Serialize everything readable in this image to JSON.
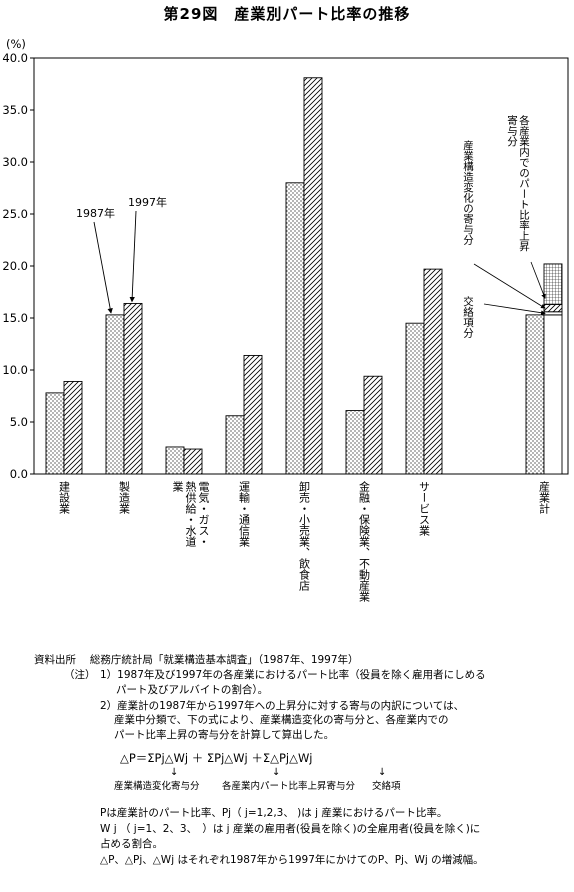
{
  "title": "第29図　産業別パート比率の推移",
  "chart_data": {
    "type": "bar",
    "ylabel": "(%)",
    "ylim": [
      0,
      40
    ],
    "yticks": [
      "0.0",
      "5.0",
      "10.0",
      "15.0",
      "20.0",
      "25.0",
      "30.0",
      "35.0",
      "40.0"
    ],
    "series": [
      {
        "name": "1987年",
        "values": [
          7.8,
          15.3,
          2.6,
          5.6,
          28.0,
          6.1,
          14.5,
          15.3
        ]
      },
      {
        "name": "1997年",
        "values": [
          8.9,
          16.4,
          2.4,
          11.4,
          38.1,
          9.4,
          19.7,
          20.2
        ]
      }
    ],
    "categories": [
      "建設業",
      "製造業",
      "電気・ガス・熱供給・水道業",
      "運輸・通信業",
      "卸売・小売業、飲食店",
      "金融・保険業、不動産業",
      "サービス業",
      "産業計"
    ],
    "total_breakdown": {
      "base": 15.3,
      "interaction": 0.3,
      "structure_change": 0.7,
      "within_industry": 3.9
    },
    "annotations": {
      "y1987": "1987年",
      "y1997": "1997年",
      "within_industry": "各産業内でのパート比率上昇寄与分",
      "structure_change": "産業構造変化の寄与分",
      "interaction": "交絡項分"
    }
  },
  "notes": {
    "source_label": "資料出所",
    "source_text": "総務庁統計局「就業構造基本調査」（1987年、1997年）",
    "note_label": "（注）",
    "note1_a": "1）1987年及び1997年の各産業におけるパート比率（役員を除く雇用者にしめる",
    "note1_b": "パート及びアルバイトの割合）。",
    "note2_a": "2）産業計の1987年から1997年への上昇分に対する寄与の内訳については、",
    "note2_b": "産業中分類で、下の式により、産業構造変化の寄与分と、各産業内での",
    "note2_c": "パート比率上昇の寄与分を計算して算出した。",
    "formula": "△P＝ΣPj△Wj ＋ ΣPj△Wj ＋Σ△Pj△Wj",
    "formula_lbl1": "産業構造変化寄与分",
    "formula_lbl2": "各産業内パート比率上昇寄与分",
    "formula_lbl3": "交絡項",
    "def1": "Pは産業計のパート比率、Pj（ j=1,2,3、 )は j 産業におけるパート比率。",
    "def2a": "W j （ j=1、2、3、　）は j 産業の雇用者(役員を除く)の全雇用者(役員を除く)に",
    "def2b": "占める割合。",
    "def3": "△P、△Pj、△Wj はそれぞれ1987年から1997年にかけてのP、Pj、Wj の増減幅。"
  }
}
